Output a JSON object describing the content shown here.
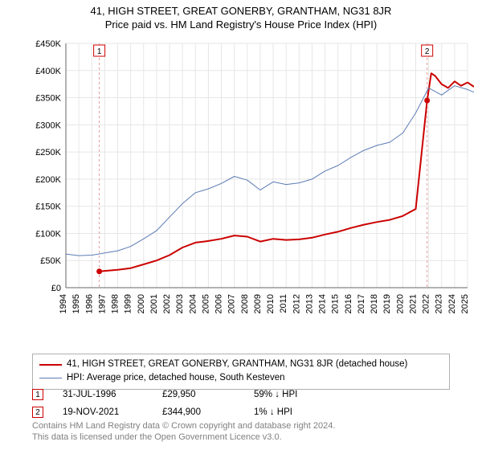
{
  "title_line1": "41, HIGH STREET, GREAT GONERBY, GRANTHAM, NG31 8JR",
  "title_line2": "Price paid vs. HM Land Registry's House Price Index (HPI)",
  "chart": {
    "type": "line",
    "background_color": "#ffffff",
    "grid_color": "#e6e6e6",
    "axis_color": "#666666",
    "tick_label_color": "#000000",
    "tick_fontsize": 11,
    "x": {
      "years": [
        1994,
        1995,
        1996,
        1997,
        1998,
        1999,
        2000,
        2001,
        2002,
        2003,
        2004,
        2005,
        2006,
        2007,
        2008,
        2009,
        2010,
        2011,
        2012,
        2013,
        2014,
        2015,
        2016,
        2017,
        2018,
        2019,
        2020,
        2021,
        2022,
        2023,
        2024,
        2025
      ],
      "label_rotation": -90
    },
    "y": {
      "min": 0,
      "max": 450000,
      "step": 50000,
      "labels": [
        "£0",
        "£50K",
        "£100K",
        "£150K",
        "£200K",
        "£250K",
        "£300K",
        "£350K",
        "£400K",
        "£450K"
      ]
    },
    "markers": [
      {
        "n": "1",
        "year": 1996.58,
        "y_value": 29950,
        "color": "#cc0000",
        "dash_color": "#e69999"
      },
      {
        "n": "2",
        "year": 2021.88,
        "y_value": 344900,
        "color": "#cc0000",
        "dash_color": "#e69999"
      }
    ],
    "series": [
      {
        "name": "property",
        "label": "41, HIGH STREET, GREAT GONERBY, GRANTHAM, NG31 8JR (detached house)",
        "color": "#cc0000",
        "width": 2,
        "points": [
          [
            1996.58,
            29950
          ],
          [
            1997,
            31000
          ],
          [
            1998,
            33000
          ],
          [
            1999,
            36000
          ],
          [
            2000,
            43000
          ],
          [
            2001,
            50000
          ],
          [
            2002,
            60000
          ],
          [
            2003,
            74000
          ],
          [
            2004,
            83000
          ],
          [
            2005,
            86000
          ],
          [
            2006,
            90000
          ],
          [
            2007,
            96000
          ],
          [
            2008,
            94000
          ],
          [
            2009,
            85000
          ],
          [
            2010,
            90000
          ],
          [
            2011,
            88000
          ],
          [
            2012,
            89000
          ],
          [
            2013,
            92000
          ],
          [
            2014,
            98000
          ],
          [
            2015,
            103000
          ],
          [
            2016,
            110000
          ],
          [
            2017,
            116000
          ],
          [
            2018,
            121000
          ],
          [
            2019,
            125000
          ],
          [
            2020,
            132000
          ],
          [
            2021,
            145000
          ],
          [
            2021.88,
            344900
          ],
          [
            2022.2,
            395000
          ],
          [
            2022.5,
            390000
          ],
          [
            2023,
            375000
          ],
          [
            2023.5,
            368000
          ],
          [
            2024,
            380000
          ],
          [
            2024.5,
            372000
          ],
          [
            2025,
            378000
          ],
          [
            2025.5,
            370000
          ]
        ]
      },
      {
        "name": "hpi",
        "label": "HPI: Average price, detached house, South Kesteven",
        "color": "#5b7bb4",
        "width": 1,
        "points": [
          [
            1994,
            62000
          ],
          [
            1995,
            59000
          ],
          [
            1996,
            60000
          ],
          [
            1997,
            64000
          ],
          [
            1998,
            68000
          ],
          [
            1999,
            76000
          ],
          [
            2000,
            90000
          ],
          [
            2001,
            105000
          ],
          [
            2002,
            130000
          ],
          [
            2003,
            155000
          ],
          [
            2004,
            175000
          ],
          [
            2005,
            182000
          ],
          [
            2006,
            192000
          ],
          [
            2007,
            205000
          ],
          [
            2008,
            198000
          ],
          [
            2009,
            180000
          ],
          [
            2010,
            195000
          ],
          [
            2011,
            190000
          ],
          [
            2012,
            193000
          ],
          [
            2013,
            200000
          ],
          [
            2014,
            215000
          ],
          [
            2015,
            225000
          ],
          [
            2016,
            240000
          ],
          [
            2017,
            253000
          ],
          [
            2018,
            262000
          ],
          [
            2019,
            268000
          ],
          [
            2020,
            285000
          ],
          [
            2021,
            322000
          ],
          [
            2022,
            368000
          ],
          [
            2023,
            355000
          ],
          [
            2024,
            372000
          ],
          [
            2025,
            365000
          ],
          [
            2025.5,
            360000
          ]
        ]
      }
    ]
  },
  "legend": {
    "series1_label": "41, HIGH STREET, GREAT GONERBY, GRANTHAM, NG31 8JR (detached house)",
    "series1_color": "#cc0000",
    "series2_label": "HPI: Average price, detached house, South Kesteven",
    "series2_color": "#5b7bb4"
  },
  "events": [
    {
      "n": "1",
      "marker_color": "#cc0000",
      "date": "31-JUL-1996",
      "price": "£29,950",
      "pct": "59% ↓ HPI"
    },
    {
      "n": "2",
      "marker_color": "#cc0000",
      "date": "19-NOV-2021",
      "price": "£344,900",
      "pct": "1% ↓ HPI"
    }
  ],
  "license_line1": "Contains HM Land Registry data © Crown copyright and database right 2024.",
  "license_line2": "This data is licensed under the Open Government Licence v3.0."
}
